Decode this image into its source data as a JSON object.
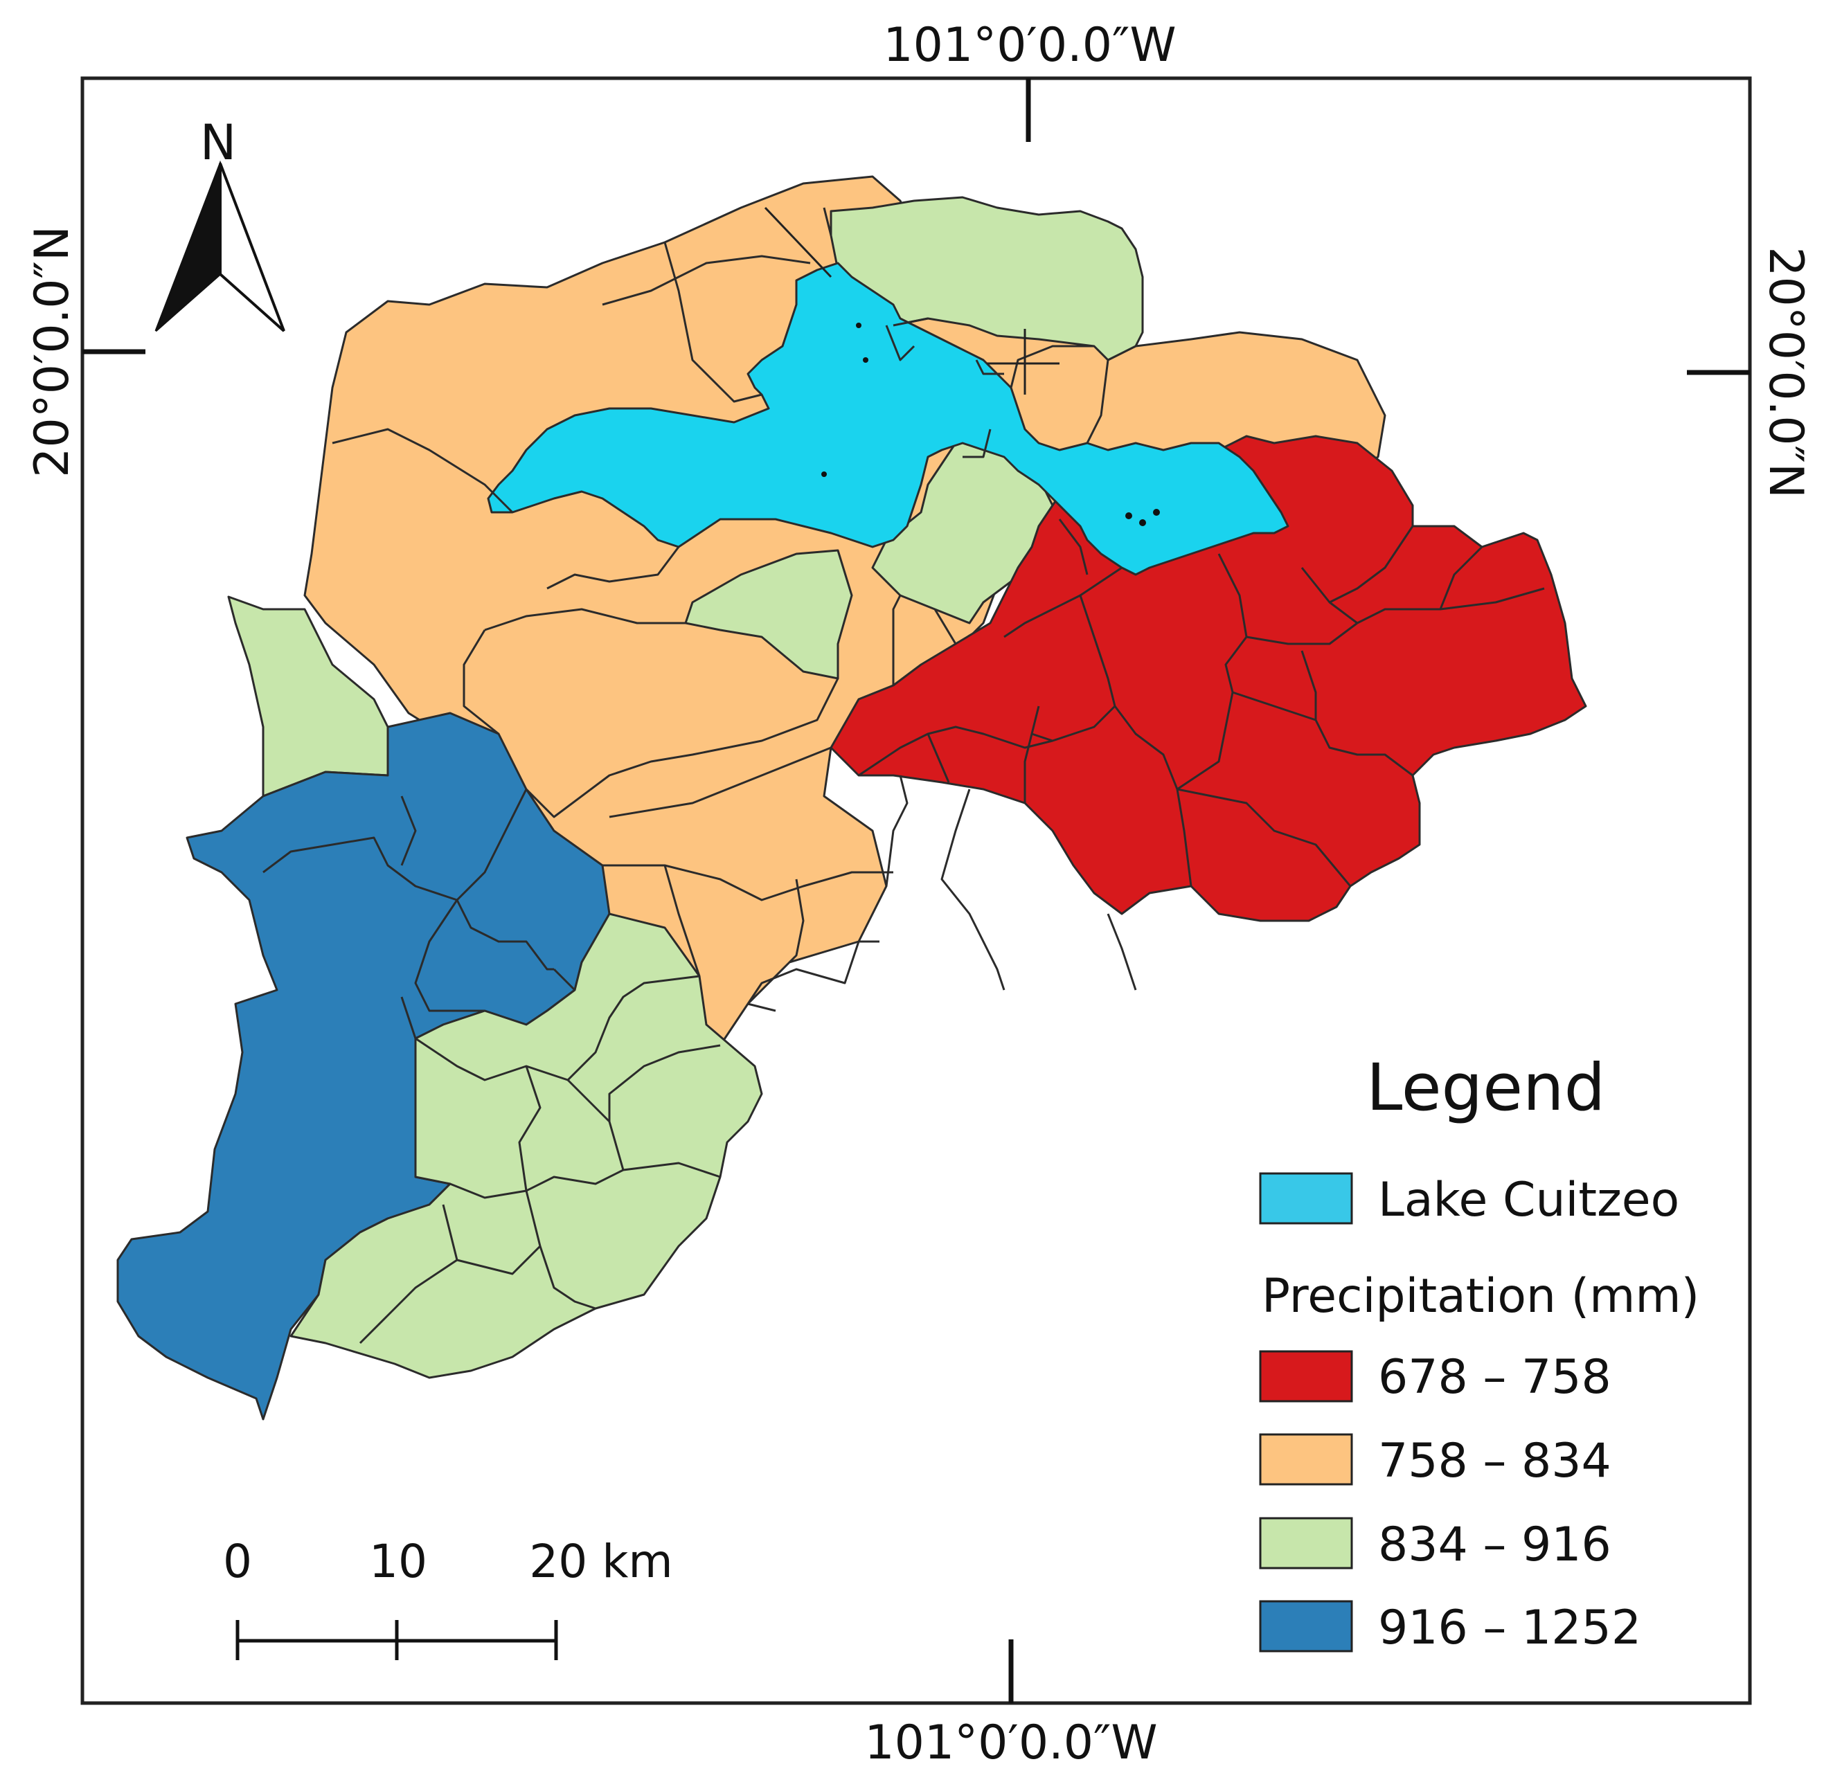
{
  "coordinates": {
    "top_longitude": "101°0′0.0″W",
    "bottom_longitude": "101°0′0.0″W",
    "left_latitude": "20°0′0.0″N",
    "right_latitude": "20°0′0.0″N"
  },
  "north_arrow": {
    "label": "N",
    "icon": "north-arrow-icon"
  },
  "scale_bar": {
    "labels": [
      "0",
      "10",
      "20 km"
    ]
  },
  "legend": {
    "title": "Legend",
    "lake": {
      "label": "Lake Cuitzeo",
      "color": "#38c8e8"
    },
    "precipitation_heading": "Precipitation (mm)",
    "classes": [
      {
        "label": "678 – 758",
        "color": "#d7191c"
      },
      {
        "label": "758 – 834",
        "color": "#fdc480"
      },
      {
        "label": "834 – 916",
        "color": "#c7e6ab"
      },
      {
        "label": "916 – 1252",
        "color": "#2c7fb8"
      }
    ]
  },
  "colors": {
    "lake_fill": "#1ad3ee",
    "red": "#d7191c",
    "orange": "#fdc480",
    "green": "#c7e6ab",
    "blue": "#2c7fb8"
  }
}
